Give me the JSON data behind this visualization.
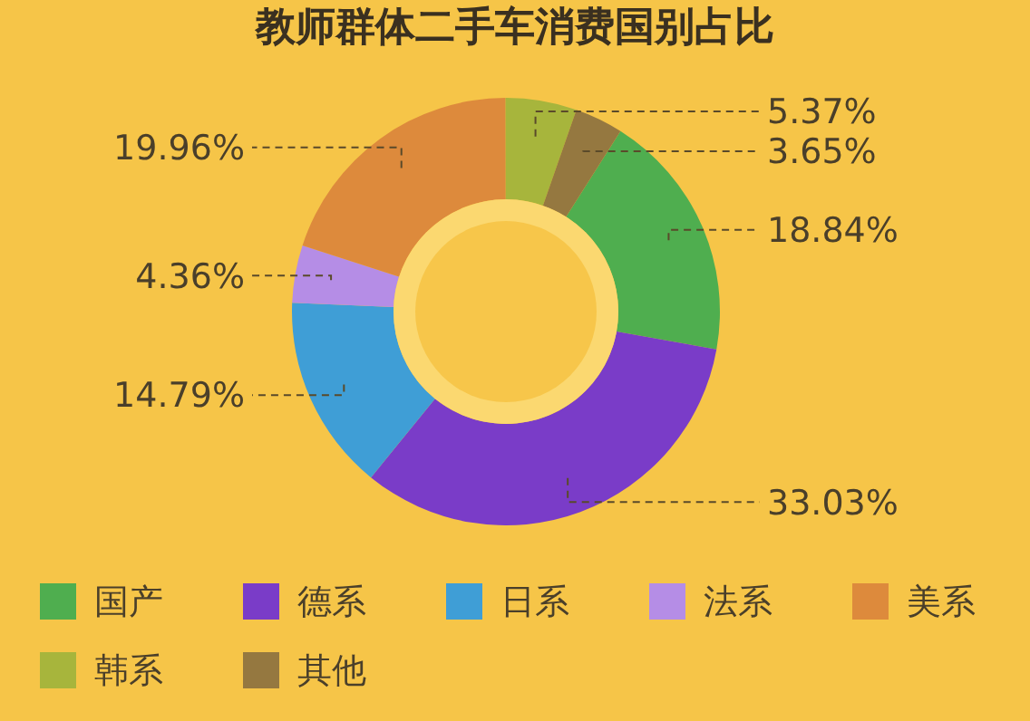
{
  "chart_data": {
    "type": "donut",
    "title": "教师群体二手车消费国别占比",
    "categories": [
      "国产",
      "德系",
      "日系",
      "法系",
      "美系",
      "韩系",
      "其他"
    ],
    "values": [
      18.84,
      33.03,
      14.79,
      4.36,
      19.96,
      5.37,
      3.65
    ],
    "value_labels": [
      "18.84%",
      "33.03%",
      "14.79%",
      "4.36%",
      "19.96%",
      "5.37%",
      "3.65%"
    ],
    "colors": [
      "#4fae4f",
      "#7a3cc8",
      "#3f9ed6",
      "#b58de6",
      "#dd8a3c",
      "#a7b53c",
      "#957840"
    ],
    "legend": "bottom"
  }
}
